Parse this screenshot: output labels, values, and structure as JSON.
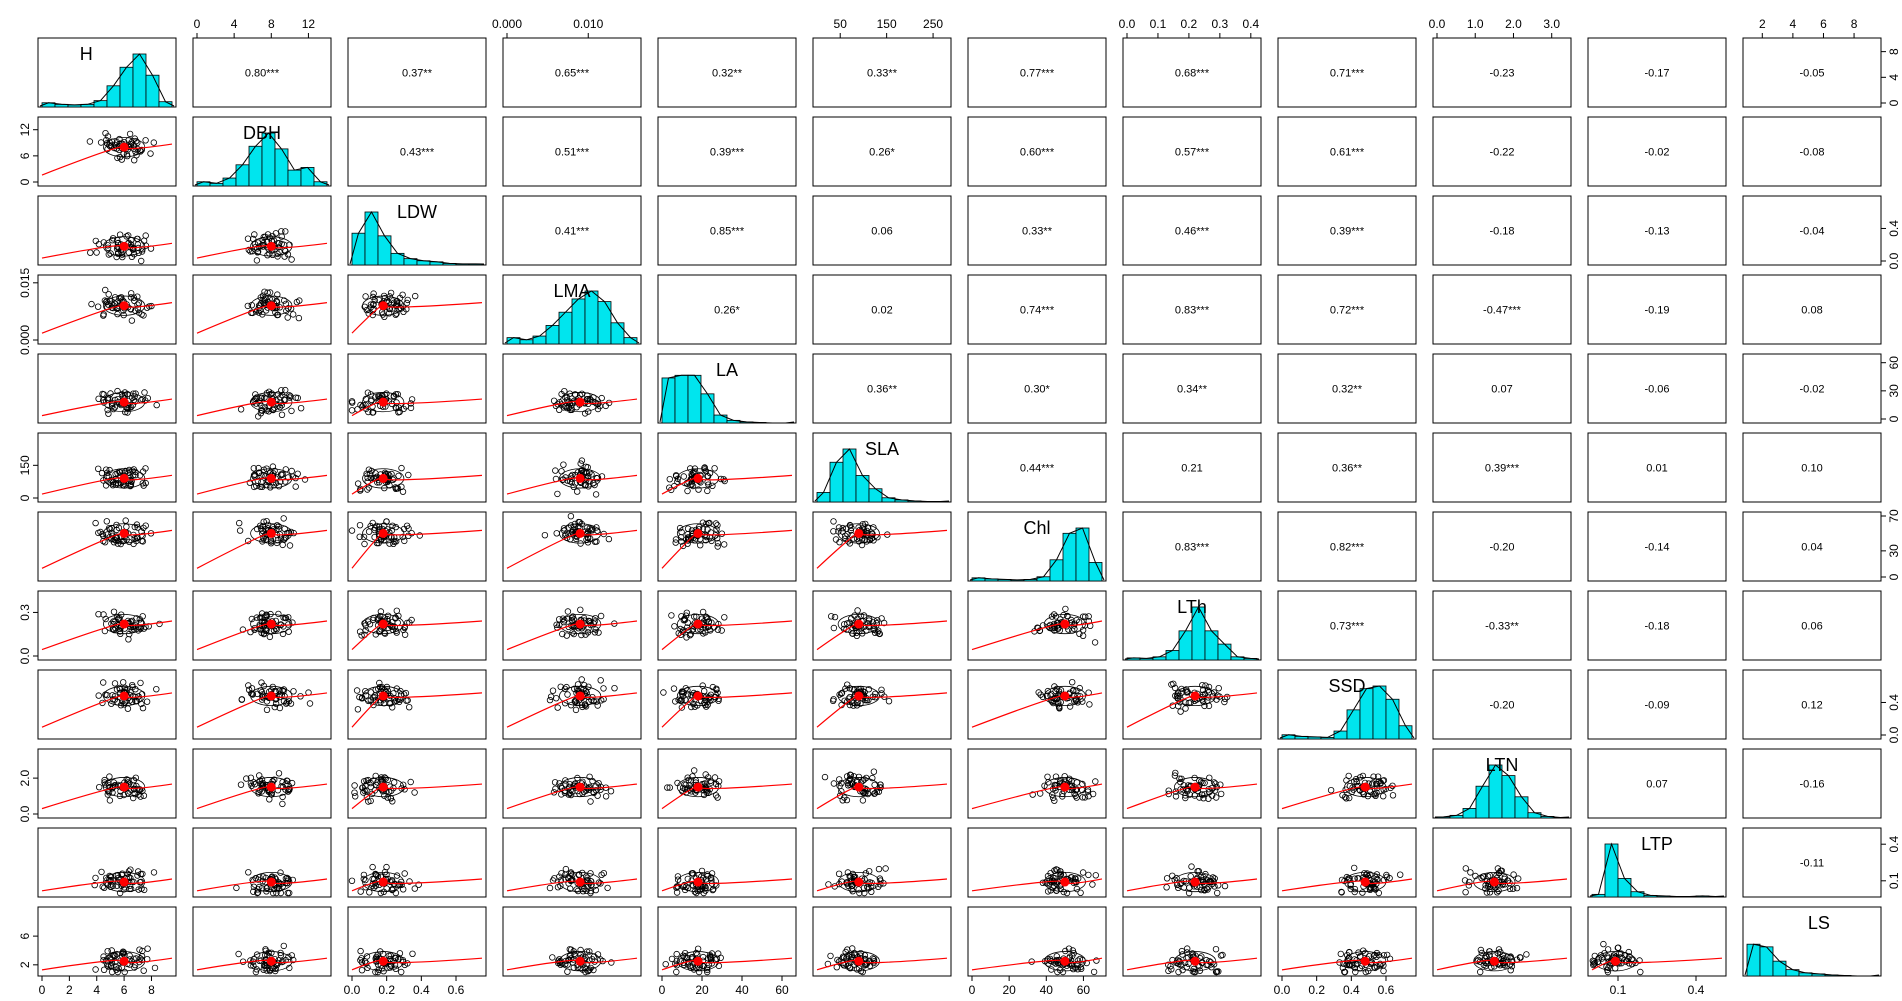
{
  "chart_data": {
    "type": "scatter-matrix",
    "variables": [
      "H",
      "DBH",
      "LDW",
      "LMA",
      "LA",
      "SLA",
      "Chl",
      "LTh",
      "SSD",
      "LTN",
      "LTP",
      "LS"
    ],
    "ranges": [
      [
        0,
        9.5
      ],
      [
        0,
        14
      ],
      [
        0,
        0.75
      ],
      [
        0,
        0.016
      ],
      [
        0,
        65
      ],
      [
        0,
        280
      ],
      [
        0,
        70
      ],
      [
        0,
        0.42
      ],
      [
        0,
        0.75
      ],
      [
        0,
        3.4
      ],
      [
        0,
        0.5
      ],
      [
        1,
        9.5
      ]
    ],
    "means": [
      6,
      8,
      0.18,
      0.009,
      18,
      90,
      50,
      0.22,
      0.48,
      1.5,
      0.09,
      2.5
    ],
    "axis_ticks": {
      "top": [
        {
          "col": 1,
          "labels": [
            "0",
            "4",
            "8",
            "12"
          ],
          "values": [
            0,
            4,
            8,
            12
          ]
        },
        {
          "col": 3,
          "labels": [
            "0.000",
            "0.010"
          ],
          "values": [
            0,
            0.01
          ]
        },
        {
          "col": 5,
          "labels": [
            "50",
            "150",
            "250"
          ],
          "values": [
            50,
            150,
            250
          ]
        },
        {
          "col": 7,
          "labels": [
            "0.0",
            "0.1",
            "0.2",
            "0.3",
            "0.4"
          ],
          "values": [
            0,
            0.1,
            0.2,
            0.3,
            0.4
          ]
        },
        {
          "col": 9,
          "labels": [
            "0.0",
            "1.0",
            "2.0",
            "3.0"
          ],
          "values": [
            0,
            1,
            2,
            3
          ]
        },
        {
          "col": 11,
          "labels": [
            "2",
            "4",
            "6",
            "8"
          ],
          "values": [
            2,
            4,
            6,
            8
          ]
        }
      ],
      "bottom": [
        {
          "col": 0,
          "labels": [
            "0",
            "2",
            "4",
            "6",
            "8"
          ],
          "values": [
            0,
            2,
            4,
            6,
            8
          ]
        },
        {
          "col": 2,
          "labels": [
            "0.0",
            "0.2",
            "0.4",
            "0.6"
          ],
          "values": [
            0,
            0.2,
            0.4,
            0.6
          ]
        },
        {
          "col": 4,
          "labels": [
            "0",
            "20",
            "40",
            "60"
          ],
          "values": [
            0,
            20,
            40,
            60
          ]
        },
        {
          "col": 6,
          "labels": [
            "0",
            "20",
            "40",
            "60"
          ],
          "values": [
            0,
            20,
            40,
            60
          ]
        },
        {
          "col": 8,
          "labels": [
            "0.0",
            "0.2",
            "0.4",
            "0.6"
          ],
          "values": [
            0,
            0.2,
            0.4,
            0.6
          ]
        },
        {
          "col": 10,
          "labels": [
            "0.1",
            "0.4"
          ],
          "values": [
            0.1,
            0.4
          ]
        }
      ],
      "left": [
        {
          "row": 1,
          "labels": [
            "0",
            "6",
            "12"
          ],
          "values": [
            0,
            6,
            12
          ]
        },
        {
          "row": 3,
          "labels": [
            "0.000",
            "0.015"
          ],
          "values": [
            0,
            0.015
          ]
        },
        {
          "row": 5,
          "labels": [
            "0",
            "150"
          ],
          "values": [
            0,
            150
          ]
        },
        {
          "row": 7,
          "labels": [
            "0.0",
            "0.3"
          ],
          "values": [
            0,
            0.3
          ]
        },
        {
          "row": 9,
          "labels": [
            "0.0",
            "2.0"
          ],
          "values": [
            0,
            2
          ]
        },
        {
          "row": 11,
          "labels": [
            "2",
            "6"
          ],
          "values": [
            2,
            6
          ]
        }
      ],
      "right": [
        {
          "row": 0,
          "labels": [
            "0",
            "4",
            "8"
          ],
          "values": [
            0,
            4,
            8
          ]
        },
        {
          "row": 2,
          "labels": [
            "0.0",
            "0.4"
          ],
          "values": [
            0,
            0.4
          ]
        },
        {
          "row": 4,
          "labels": [
            "0",
            "30",
            "60"
          ],
          "values": [
            0,
            30,
            60
          ]
        },
        {
          "row": 6,
          "labels": [
            "0",
            "30",
            "70"
          ],
          "values": [
            0,
            30,
            70
          ]
        },
        {
          "row": 8,
          "labels": [
            "0.0",
            "0.4"
          ],
          "values": [
            0,
            0.4
          ]
        },
        {
          "row": 10,
          "labels": [
            "0.1",
            "0.4"
          ],
          "values": [
            0.1,
            0.4
          ]
        }
      ]
    },
    "correlations": [
      [
        "",
        "0.80***",
        "0.37**",
        "0.65***",
        "0.32**",
        "0.33**",
        "0.77***",
        "0.68***",
        "0.71***",
        "-0.23",
        "-0.17",
        "-0.05"
      ],
      [
        "",
        "",
        "0.43***",
        "0.51***",
        "0.39***",
        "0.26*",
        "0.60***",
        "0.57***",
        "0.61***",
        "-0.22",
        "-0.02",
        "-0.08"
      ],
      [
        "",
        "",
        "",
        "0.41***",
        "0.85***",
        "0.06",
        "0.33**",
        "0.46***",
        "0.39***",
        "-0.18",
        "-0.13",
        "-0.04"
      ],
      [
        "",
        "",
        "",
        "",
        "0.26*",
        "0.02",
        "0.74***",
        "0.83***",
        "0.72***",
        "-0.47***",
        "-0.19",
        "0.08"
      ],
      [
        "",
        "",
        "",
        "",
        "",
        "0.36**",
        "0.30*",
        "0.34**",
        "0.32**",
        "0.07",
        "-0.06",
        "-0.02"
      ],
      [
        "",
        "",
        "",
        "",
        "",
        "",
        "0.44***",
        "0.21",
        "0.36**",
        "0.39***",
        "0.01",
        "0.10"
      ],
      [
        "",
        "",
        "",
        "",
        "",
        "",
        "",
        "0.83***",
        "0.82***",
        "-0.20",
        "-0.14",
        "0.04"
      ],
      [
        "",
        "",
        "",
        "",
        "",
        "",
        "",
        "",
        "0.73***",
        "-0.33**",
        "-0.18",
        "0.06"
      ],
      [
        "",
        "",
        "",
        "",
        "",
        "",
        "",
        "",
        "",
        "-0.20",
        "-0.09",
        "0.12"
      ],
      [
        "",
        "",
        "",
        "",
        "",
        "",
        "",
        "",
        "",
        "",
        "0.07",
        "-0.16"
      ],
      [
        "",
        "",
        "",
        "",
        "",
        "",
        "",
        "",
        "",
        "",
        "",
        "-0.11"
      ],
      [
        "",
        "",
        "",
        "",
        "",
        "",
        "",
        "",
        "",
        "",
        "",
        ""
      ]
    ],
    "histograms": [
      [
        0.08,
        0.05,
        0.04,
        0.05,
        0.12,
        0.4,
        0.75,
        1.0,
        0.6,
        0.1
      ],
      [
        0.08,
        0.05,
        0.15,
        0.4,
        0.75,
        1.0,
        0.7,
        0.3,
        0.35,
        0.08
      ],
      [
        0.6,
        1.0,
        0.55,
        0.22,
        0.12,
        0.08,
        0.06,
        0.03,
        0.02,
        0.02
      ],
      [
        0.12,
        0.08,
        0.15,
        0.35,
        0.6,
        0.85,
        1.0,
        0.8,
        0.4,
        0.12
      ],
      [
        0.85,
        0.9,
        0.9,
        0.55,
        0.15,
        0.05,
        0.02,
        0.01,
        0.0,
        0.0
      ],
      [
        0.18,
        0.75,
        1.0,
        0.5,
        0.25,
        0.08,
        0.04,
        0.02,
        0.01,
        0.01
      ],
      [
        0.06,
        0.04,
        0.03,
        0.02,
        0.03,
        0.08,
        0.4,
        0.9,
        1.0,
        0.35
      ],
      [
        0.04,
        0.03,
        0.06,
        0.18,
        0.55,
        1.0,
        0.55,
        0.3,
        0.06,
        0.03
      ],
      [
        0.08,
        0.05,
        0.04,
        0.03,
        0.15,
        0.55,
        0.95,
        1.0,
        0.75,
        0.25
      ],
      [
        0.02,
        0.05,
        0.18,
        0.6,
        1.0,
        0.8,
        0.4,
        0.1,
        0.03,
        0.01
      ],
      [
        0.05,
        1.0,
        0.35,
        0.1,
        0.03,
        0.02,
        0.01,
        0.01,
        0.02,
        0.01
      ],
      [
        0.6,
        0.55,
        0.28,
        0.12,
        0.06,
        0.04,
        0.02,
        0.01,
        0.0,
        0.0
      ]
    ]
  }
}
